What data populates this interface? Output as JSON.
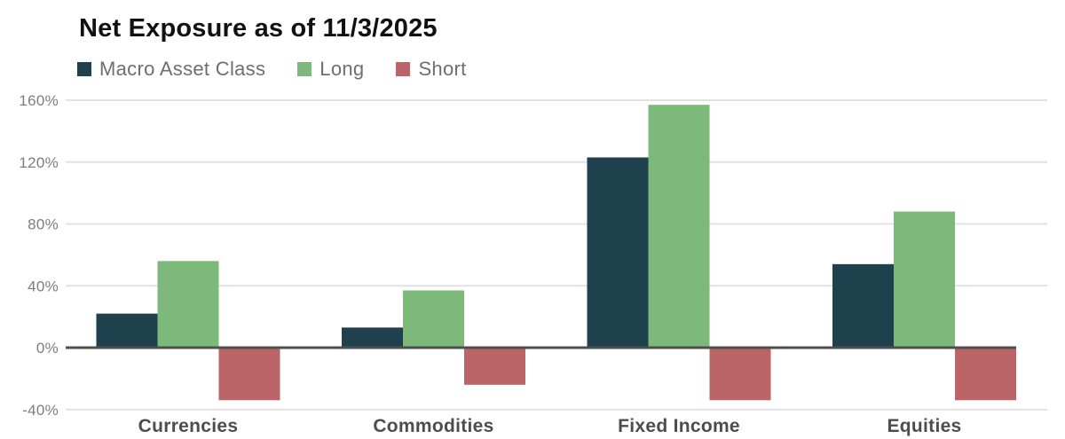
{
  "title": "Net Exposure as of 11/3/2025",
  "chart_data": {
    "type": "bar",
    "title": "Net Exposure as of 11/3/2025",
    "categories": [
      "Currencies",
      "Commodities",
      "Fixed Income",
      "Equities"
    ],
    "series": [
      {
        "name": "Macro Asset Class",
        "color": "#1f404d",
        "values": [
          22,
          13,
          123,
          54
        ]
      },
      {
        "name": "Long",
        "color": "#7cb97b",
        "values": [
          56,
          37,
          157,
          88
        ]
      },
      {
        "name": "Short",
        "color": "#bb6568",
        "values": [
          -34,
          -24,
          -34,
          -34
        ]
      }
    ],
    "unit": "%",
    "ylim": [
      -40,
      160
    ],
    "yticks": [
      160,
      120,
      80,
      40,
      0,
      -40
    ],
    "ytick_labels": [
      "160%",
      "120%",
      "80%",
      "40%",
      "0%",
      "-40%"
    ],
    "grid": true,
    "legend_position": "top-left",
    "xlabel": "",
    "ylabel": ""
  },
  "colors": {
    "background": "#ffffff",
    "title_text": "#111111",
    "legend_text": "#6e6e6e",
    "tick_text": "#7d7d7d",
    "category_text": "#4d4d4d",
    "gridline": "#e2e2e2",
    "zero_line": "#4f4f4f"
  }
}
